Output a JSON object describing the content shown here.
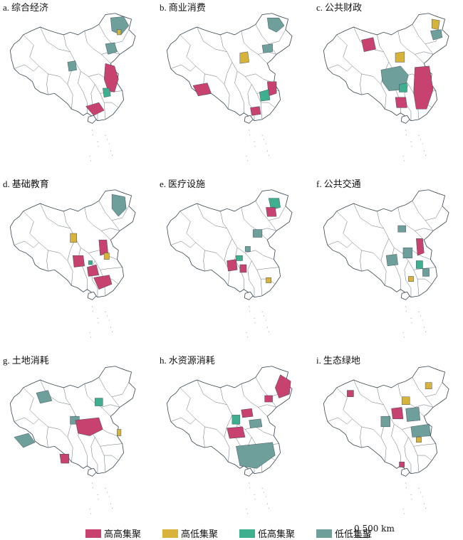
{
  "panels": [
    {
      "letter": "a.",
      "name": "综合经济"
    },
    {
      "letter": "b.",
      "name": "商业消费"
    },
    {
      "letter": "c.",
      "name": "公共财政"
    },
    {
      "letter": "d.",
      "name": "基础教育"
    },
    {
      "letter": "e.",
      "name": "医疗设施"
    },
    {
      "letter": "f.",
      "name": "公共交通"
    },
    {
      "letter": "g.",
      "name": "土地消耗"
    },
    {
      "letter": "h.",
      "name": "水资源消耗"
    },
    {
      "letter": "i.",
      "name": "生态绿地"
    }
  ],
  "legend": [
    {
      "label": "高高集聚",
      "color": "#c7426f"
    },
    {
      "label": "高低集聚",
      "color": "#d8b33c"
    },
    {
      "label": "低高集聚",
      "color": "#3eb08f"
    },
    {
      "label": "低低集聚",
      "color": "#6f9f9a"
    }
  ],
  "scale": {
    "label": "0  500 km"
  }
}
